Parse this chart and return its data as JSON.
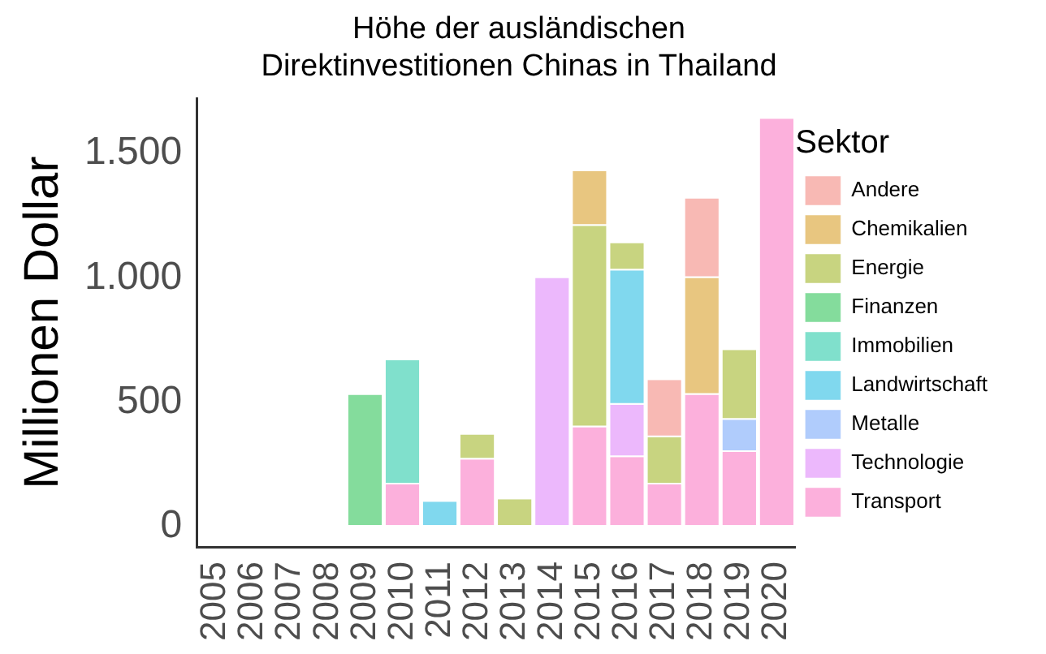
{
  "chart_data": {
    "type": "bar",
    "stacked": true,
    "title": "Höhe der ausländischen\nDirektinvestitionen Chinas in Thailand",
    "ylabel": "Millionen Dollar",
    "legend_title": "Sektor",
    "legend": "right",
    "grid": false,
    "categories": [
      "2005",
      "2006",
      "2007",
      "2008",
      "2009",
      "2010",
      "2011",
      "2012",
      "2013",
      "2014",
      "2015",
      "2016",
      "2017",
      "2018",
      "2019",
      "2020"
    ],
    "ylim": [
      -82,
      1722
    ],
    "yticks": [
      0,
      500,
      {
        "value": 1000,
        "label": "1.000"
      },
      {
        "value": 1500,
        "label": "1.500"
      }
    ],
    "series": [
      {
        "name": "Transport",
        "color": "#fcb0dc",
        "values": [
          null,
          null,
          null,
          null,
          null,
          170,
          null,
          270,
          null,
          null,
          400,
          280,
          170,
          530,
          300,
          1640
        ]
      },
      {
        "name": "Technologie",
        "color": "#ecb8fc",
        "values": [
          null,
          null,
          null,
          null,
          null,
          null,
          null,
          null,
          null,
          1000,
          null,
          210,
          null,
          null,
          null,
          null
        ]
      },
      {
        "name": "Metalle",
        "color": "#b0ccfc",
        "values": [
          null,
          null,
          null,
          null,
          null,
          null,
          null,
          null,
          null,
          null,
          null,
          null,
          null,
          null,
          130,
          null
        ]
      },
      {
        "name": "Landwirtschaft",
        "color": "#80d8ee",
        "values": [
          null,
          null,
          null,
          null,
          null,
          null,
          100,
          null,
          null,
          null,
          null,
          540,
          null,
          null,
          null,
          null
        ]
      },
      {
        "name": "Immobilien",
        "color": "#80e0cc",
        "values": [
          null,
          null,
          null,
          null,
          null,
          500,
          null,
          null,
          null,
          null,
          null,
          null,
          null,
          null,
          null,
          null
        ]
      },
      {
        "name": "Finanzen",
        "color": "#84dc9c",
        "values": [
          null,
          null,
          null,
          null,
          530,
          null,
          null,
          null,
          null,
          null,
          null,
          null,
          null,
          null,
          null,
          null
        ]
      },
      {
        "name": "Energie",
        "color": "#c8d480",
        "values": [
          null,
          null,
          null,
          null,
          null,
          null,
          null,
          100,
          110,
          null,
          810,
          110,
          190,
          null,
          280,
          null
        ]
      },
      {
        "name": "Chemikalien",
        "color": "#e8c680",
        "values": [
          null,
          null,
          null,
          null,
          null,
          null,
          null,
          null,
          null,
          null,
          220,
          null,
          null,
          470,
          null,
          null
        ]
      },
      {
        "name": "Andere",
        "color": "#f8b9b4",
        "values": [
          null,
          null,
          null,
          null,
          null,
          null,
          null,
          null,
          null,
          null,
          null,
          null,
          230,
          320,
          null,
          null
        ]
      }
    ]
  }
}
